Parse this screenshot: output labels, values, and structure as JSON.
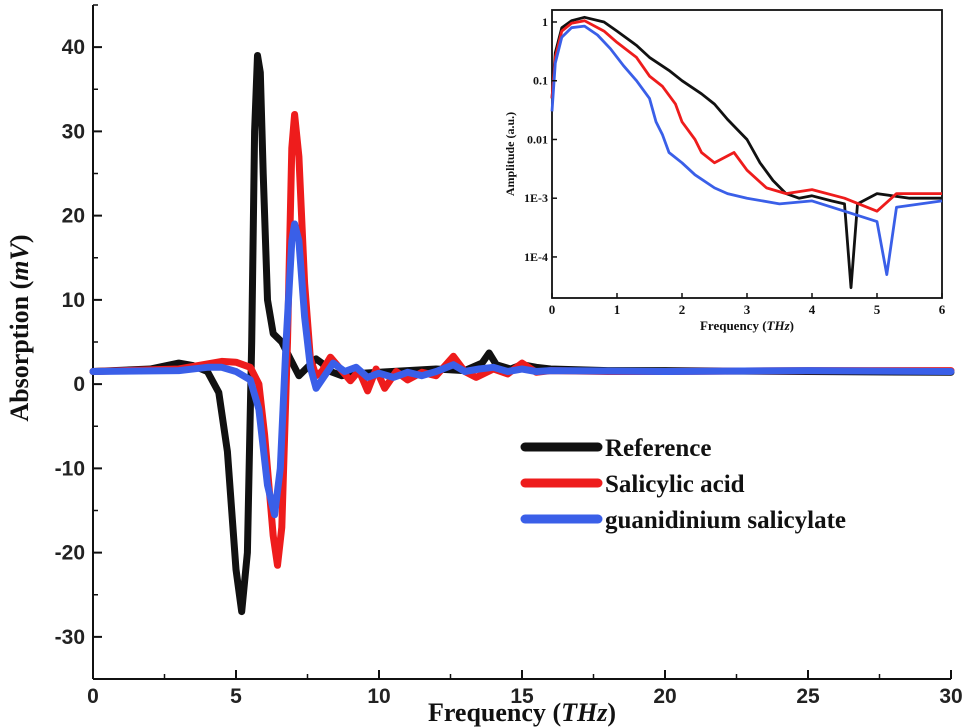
{
  "chart_data": [
    {
      "type": "line",
      "xlabel_main": "Frequency",
      "xlabel_unit": "THz",
      "ylabel_main": "Absorption",
      "ylabel_unit": "mV",
      "xlim": [
        0,
        30
      ],
      "ylim": [
        -35,
        45
      ],
      "xticks": [
        0,
        5,
        10,
        15,
        20,
        25,
        30
      ],
      "yticks": [
        -30,
        -20,
        -10,
        0,
        10,
        20,
        30,
        40
      ],
      "legend_position": "bottom-right",
      "series": [
        {
          "name": "Reference",
          "color": "#111111",
          "points": [
            [
              0,
              1.5
            ],
            [
              2,
              1.8
            ],
            [
              3,
              2.5
            ],
            [
              3.5,
              2.2
            ],
            [
              4,
              1.5
            ],
            [
              4.4,
              -1
            ],
            [
              4.7,
              -8
            ],
            [
              5,
              -22
            ],
            [
              5.2,
              -27
            ],
            [
              5.4,
              -20
            ],
            [
              5.55,
              5
            ],
            [
              5.65,
              30
            ],
            [
              5.75,
              39
            ],
            [
              5.85,
              37
            ],
            [
              5.95,
              25
            ],
            [
              6.1,
              10
            ],
            [
              6.3,
              6
            ],
            [
              6.6,
              5
            ],
            [
              6.9,
              3
            ],
            [
              7.2,
              1
            ],
            [
              7.5,
              2
            ],
            [
              7.8,
              3
            ],
            [
              8.0,
              2.5
            ],
            [
              8.3,
              1.5
            ],
            [
              8.7,
              1
            ],
            [
              9,
              1.2
            ],
            [
              10,
              1.4
            ],
            [
              11,
              1.6
            ],
            [
              12,
              1.8
            ],
            [
              13,
              1.6
            ],
            [
              13.6,
              2.5
            ],
            [
              13.85,
              3.7
            ],
            [
              14.1,
              2.3
            ],
            [
              14.6,
              1.8
            ],
            [
              15,
              2.3
            ],
            [
              15.5,
              2
            ],
            [
              16,
              1.8
            ],
            [
              18,
              1.6
            ],
            [
              20,
              1.6
            ],
            [
              25,
              1.5
            ],
            [
              30,
              1.4
            ]
          ]
        },
        {
          "name": "Salicylic acid",
          "color": "#ee1c1c",
          "points": [
            [
              0,
              1.5
            ],
            [
              3,
              1.8
            ],
            [
              4,
              2.4
            ],
            [
              4.5,
              2.7
            ],
            [
              5,
              2.6
            ],
            [
              5.5,
              2
            ],
            [
              5.8,
              0
            ],
            [
              6.0,
              -6
            ],
            [
              6.3,
              -18
            ],
            [
              6.45,
              -21.5
            ],
            [
              6.6,
              -17
            ],
            [
              6.8,
              5
            ],
            [
              6.95,
              28
            ],
            [
              7.05,
              32
            ],
            [
              7.2,
              27
            ],
            [
              7.4,
              12
            ],
            [
              7.6,
              3
            ],
            [
              7.8,
              1
            ],
            [
              8.0,
              1.5
            ],
            [
              8.3,
              3.2
            ],
            [
              8.6,
              2
            ],
            [
              9.0,
              0.4
            ],
            [
              9.3,
              1.6
            ],
            [
              9.6,
              -0.8
            ],
            [
              9.9,
              1.8
            ],
            [
              10.2,
              -0.5
            ],
            [
              10.6,
              1.5
            ],
            [
              11,
              0.5
            ],
            [
              11.5,
              1.4
            ],
            [
              12,
              1
            ],
            [
              12.6,
              3.3
            ],
            [
              13,
              1.5
            ],
            [
              13.4,
              0.8
            ],
            [
              14,
              1.8
            ],
            [
              14.5,
              1.2
            ],
            [
              15,
              2.5
            ],
            [
              15.5,
              1.4
            ],
            [
              16,
              1.6
            ],
            [
              18,
              1.5
            ],
            [
              20,
              1.5
            ],
            [
              25,
              1.6
            ],
            [
              30,
              1.6
            ]
          ]
        },
        {
          "name": "guanidinium salicylate",
          "color": "#3a5fe8",
          "points": [
            [
              0,
              1.5
            ],
            [
              3,
              1.6
            ],
            [
              4,
              2
            ],
            [
              4.5,
              2
            ],
            [
              5,
              1.5
            ],
            [
              5.5,
              0.5
            ],
            [
              5.8,
              -3
            ],
            [
              6.1,
              -12
            ],
            [
              6.35,
              -15.5
            ],
            [
              6.55,
              -10
            ],
            [
              6.75,
              5
            ],
            [
              6.95,
              17
            ],
            [
              7.05,
              19
            ],
            [
              7.2,
              17
            ],
            [
              7.4,
              8
            ],
            [
              7.6,
              2
            ],
            [
              7.8,
              -0.5
            ],
            [
              8.0,
              0.5
            ],
            [
              8.4,
              2.5
            ],
            [
              8.8,
              1.5
            ],
            [
              9.2,
              2
            ],
            [
              9.6,
              0.8
            ],
            [
              10,
              1.3
            ],
            [
              10.5,
              0.8
            ],
            [
              11,
              1.4
            ],
            [
              11.5,
              1
            ],
            [
              12,
              1.5
            ],
            [
              12.6,
              2.3
            ],
            [
              13,
              1.5
            ],
            [
              13.5,
              1.8
            ],
            [
              14,
              2
            ],
            [
              14.5,
              1.5
            ],
            [
              15,
              1.8
            ],
            [
              15.5,
              1.5
            ],
            [
              16,
              1.6
            ],
            [
              20,
              1.5
            ],
            [
              25,
              1.6
            ],
            [
              30,
              1.5
            ]
          ]
        }
      ]
    },
    {
      "type": "line",
      "scale": "log",
      "xlabel_main": "Frequency",
      "xlabel_unit": "THz",
      "ylabel": "Amplitude (a.u.)",
      "xlim": [
        0,
        6
      ],
      "ylim": [
        2e-05,
        1.6
      ],
      "xticks": [
        0,
        1,
        2,
        3,
        4,
        5,
        6
      ],
      "yticks": [
        {
          "value": 1,
          "label": "1"
        },
        {
          "value": 0.1,
          "label": "0.1"
        },
        {
          "value": 0.01,
          "label": "0.01"
        },
        {
          "value": 0.001,
          "label": "1E-3"
        },
        {
          "value": 0.0001,
          "label": "1E-4"
        }
      ],
      "series": [
        {
          "color": "#111111",
          "points": [
            [
              0,
              0.05
            ],
            [
              0.05,
              0.3
            ],
            [
              0.15,
              0.8
            ],
            [
              0.3,
              1.05
            ],
            [
              0.5,
              1.2
            ],
            [
              0.8,
              1.0
            ],
            [
              1.0,
              0.7
            ],
            [
              1.3,
              0.4
            ],
            [
              1.5,
              0.25
            ],
            [
              1.8,
              0.15
            ],
            [
              2.0,
              0.1
            ],
            [
              2.3,
              0.06
            ],
            [
              2.5,
              0.04
            ],
            [
              2.7,
              0.022
            ],
            [
              3.0,
              0.01
            ],
            [
              3.2,
              0.004
            ],
            [
              3.4,
              0.002
            ],
            [
              3.6,
              0.0012
            ],
            [
              3.8,
              0.001
            ],
            [
              4.0,
              0.0011
            ],
            [
              4.3,
              0.0009
            ],
            [
              4.5,
              0.0008
            ],
            [
              4.6,
              3e-05
            ],
            [
              4.7,
              0.0008
            ],
            [
              5.0,
              0.0012
            ],
            [
              5.5,
              0.001
            ],
            [
              6.0,
              0.001
            ]
          ]
        },
        {
          "color": "#ee1c1c",
          "points": [
            [
              0,
              0.05
            ],
            [
              0.05,
              0.25
            ],
            [
              0.15,
              0.7
            ],
            [
              0.3,
              0.95
            ],
            [
              0.5,
              1.05
            ],
            [
              0.8,
              0.7
            ],
            [
              1.0,
              0.45
            ],
            [
              1.3,
              0.25
            ],
            [
              1.5,
              0.12
            ],
            [
              1.7,
              0.08
            ],
            [
              1.9,
              0.04
            ],
            [
              2.0,
              0.02
            ],
            [
              2.2,
              0.01
            ],
            [
              2.3,
              0.006
            ],
            [
              2.5,
              0.004
            ],
            [
              2.8,
              0.006
            ],
            [
              3.0,
              0.003
            ],
            [
              3.3,
              0.0015
            ],
            [
              3.6,
              0.0012
            ],
            [
              4.0,
              0.0014
            ],
            [
              4.5,
              0.001
            ],
            [
              5.0,
              0.0006
            ],
            [
              5.3,
              0.0012
            ],
            [
              6.0,
              0.0012
            ]
          ]
        },
        {
          "color": "#3a5fe8",
          "points": [
            [
              0,
              0.03
            ],
            [
              0.05,
              0.2
            ],
            [
              0.15,
              0.55
            ],
            [
              0.3,
              0.8
            ],
            [
              0.5,
              0.85
            ],
            [
              0.7,
              0.6
            ],
            [
              0.9,
              0.35
            ],
            [
              1.1,
              0.18
            ],
            [
              1.3,
              0.1
            ],
            [
              1.5,
              0.05
            ],
            [
              1.6,
              0.02
            ],
            [
              1.7,
              0.012
            ],
            [
              1.8,
              0.006
            ],
            [
              2.0,
              0.004
            ],
            [
              2.2,
              0.0025
            ],
            [
              2.5,
              0.0015
            ],
            [
              2.7,
              0.0012
            ],
            [
              3.0,
              0.001
            ],
            [
              3.5,
              0.0008
            ],
            [
              4.0,
              0.0009
            ],
            [
              4.5,
              0.0006
            ],
            [
              5.0,
              0.0004
            ],
            [
              5.15,
              5e-05
            ],
            [
              5.3,
              0.0007
            ],
            [
              6.0,
              0.0009
            ]
          ]
        }
      ]
    }
  ]
}
